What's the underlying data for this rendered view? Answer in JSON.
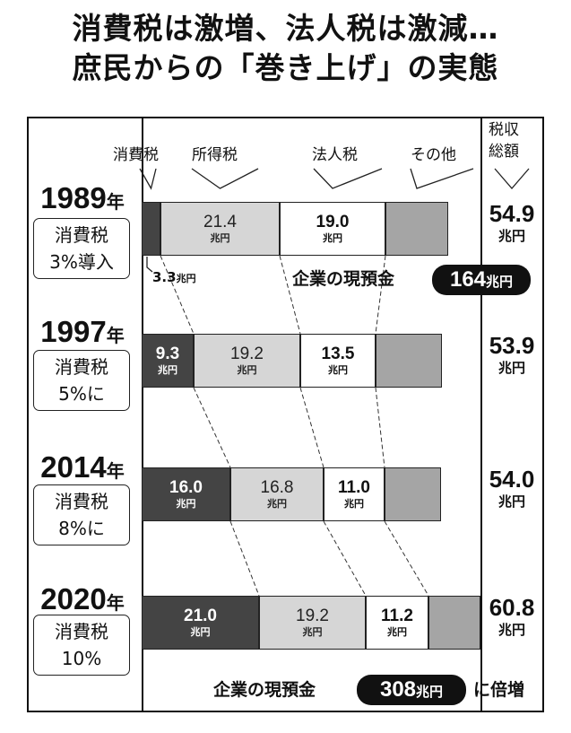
{
  "title_line1": "消費税は激増、法人税は激減…",
  "title_line2": "庶民からの「巻き上げ」の実態",
  "categories": [
    "消費税",
    "所得税",
    "法人税",
    "その他"
  ],
  "total_header": [
    "税収",
    "総額"
  ],
  "unit": "兆円",
  "year_suffix": "年",
  "cash_label": "企業の現預金",
  "cash_1989": "164",
  "cash_2020": "308",
  "cash_2020_suffix": "に倍増",
  "small_label_1989": "3.3",
  "colors": {
    "consumption": "#444444",
    "income": "#d6d6d6",
    "corporate": "#ffffff",
    "other": "#a5a5a5"
  },
  "chart_data": {
    "type": "bar",
    "orientation": "horizontal",
    "stacked": true,
    "title": "消費税は激増、法人税は激減…庶民からの「巻き上げ」の実態",
    "categories": [
      "1989年",
      "1997年",
      "2014年",
      "2020年"
    ],
    "series": [
      {
        "name": "消費税",
        "values": [
          3.3,
          9.3,
          16.0,
          21.0
        ]
      },
      {
        "name": "所得税",
        "values": [
          21.4,
          19.2,
          16.8,
          19.2
        ]
      },
      {
        "name": "法人税",
        "values": [
          19.0,
          13.5,
          11.0,
          11.2
        ]
      },
      {
        "name": "その他",
        "values": [
          11.2,
          11.9,
          10.2,
          9.4
        ]
      }
    ],
    "totals": [
      54.9,
      53.9,
      54.0,
      60.8
    ],
    "unit": "兆円",
    "rows": [
      {
        "year": "1989",
        "note": [
          "消費税",
          "3%導入"
        ],
        "label_consumption": "",
        "label_income": "21.4",
        "label_corporate": "19.0",
        "total": "54.9"
      },
      {
        "year": "1997",
        "note": [
          "消費税",
          "5%に"
        ],
        "label_consumption": "9.3",
        "label_income": "19.2",
        "label_corporate": "13.5",
        "total": "53.9"
      },
      {
        "year": "2014",
        "note": [
          "消費税",
          "8%に"
        ],
        "label_consumption": "16.0",
        "label_income": "16.8",
        "label_corporate": "11.0",
        "total": "54.0"
      },
      {
        "year": "2020",
        "note": [
          "消費税",
          "10%"
        ],
        "label_consumption": "21.0",
        "label_income": "19.2",
        "label_corporate": "11.2",
        "total": "60.8"
      }
    ],
    "annotations": [
      {
        "text": "企業の現預金 164兆円",
        "near": "1989年"
      },
      {
        "text": "企業の現預金 308兆円 に倍増",
        "near": "2020年"
      }
    ]
  }
}
